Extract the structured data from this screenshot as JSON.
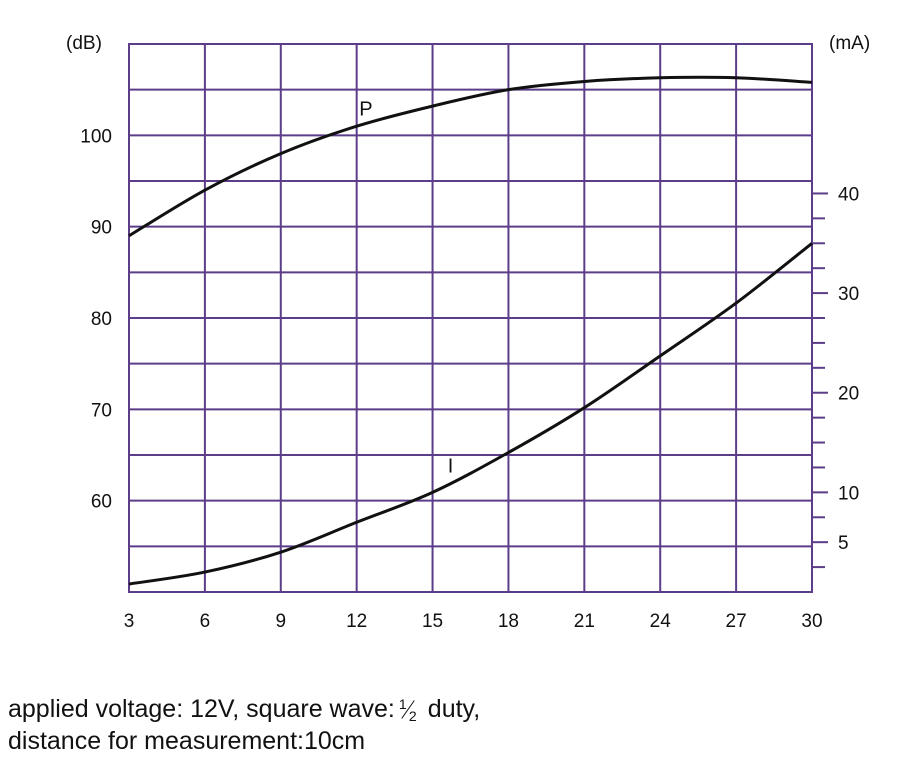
{
  "colors": {
    "grid": "#5c3d8a",
    "curve": "#111111"
  },
  "chart_data": {
    "type": "line",
    "grid": true,
    "x": {
      "ticks": [
        3,
        6,
        9,
        12,
        15,
        18,
        21,
        24,
        27,
        30
      ],
      "tick_labels": [
        "3",
        "6",
        "9",
        "12",
        "15",
        "18",
        "21",
        "24",
        "27",
        "30"
      ],
      "range": [
        3,
        30
      ]
    },
    "y_left": {
      "unit_label": "(dB)",
      "range": [
        50,
        110
      ],
      "ticks": [
        60,
        70,
        80,
        90,
        100
      ],
      "tick_labels": [
        "60",
        "70",
        "80",
        "90",
        "100"
      ]
    },
    "y_right": {
      "unit_label": "(mA)",
      "range": [
        0,
        55
      ],
      "ticks": [
        5,
        10,
        20,
        30,
        40
      ],
      "tick_labels": [
        "5",
        "10",
        "20",
        "30",
        "40"
      ],
      "minor_ticks": [
        2.5,
        7.5,
        12.5,
        15,
        17.5,
        22.5,
        25,
        27.5,
        32.5,
        35,
        37.5
      ]
    },
    "series": [
      {
        "name": "P",
        "axis": "left",
        "x": [
          3,
          6,
          9,
          12,
          15,
          18,
          21,
          24,
          27,
          30
        ],
        "y": [
          89,
          94,
          98,
          101,
          103.2,
          105,
          105.9,
          106.3,
          106.3,
          105.8
        ]
      },
      {
        "name": "I",
        "axis": "right",
        "x": [
          3,
          6,
          9,
          12,
          15,
          18,
          21,
          24,
          27,
          30
        ],
        "y": [
          0.8,
          2,
          4,
          7,
          10,
          14,
          18.5,
          23.7,
          29,
          35
        ]
      }
    ]
  },
  "caption": {
    "line1_before": "applied voltage: 12V, square wave:",
    "frac_num": "1",
    "frac_den": "2",
    "line1_after": " duty,",
    "line2": "distance for measurement:10cm"
  }
}
